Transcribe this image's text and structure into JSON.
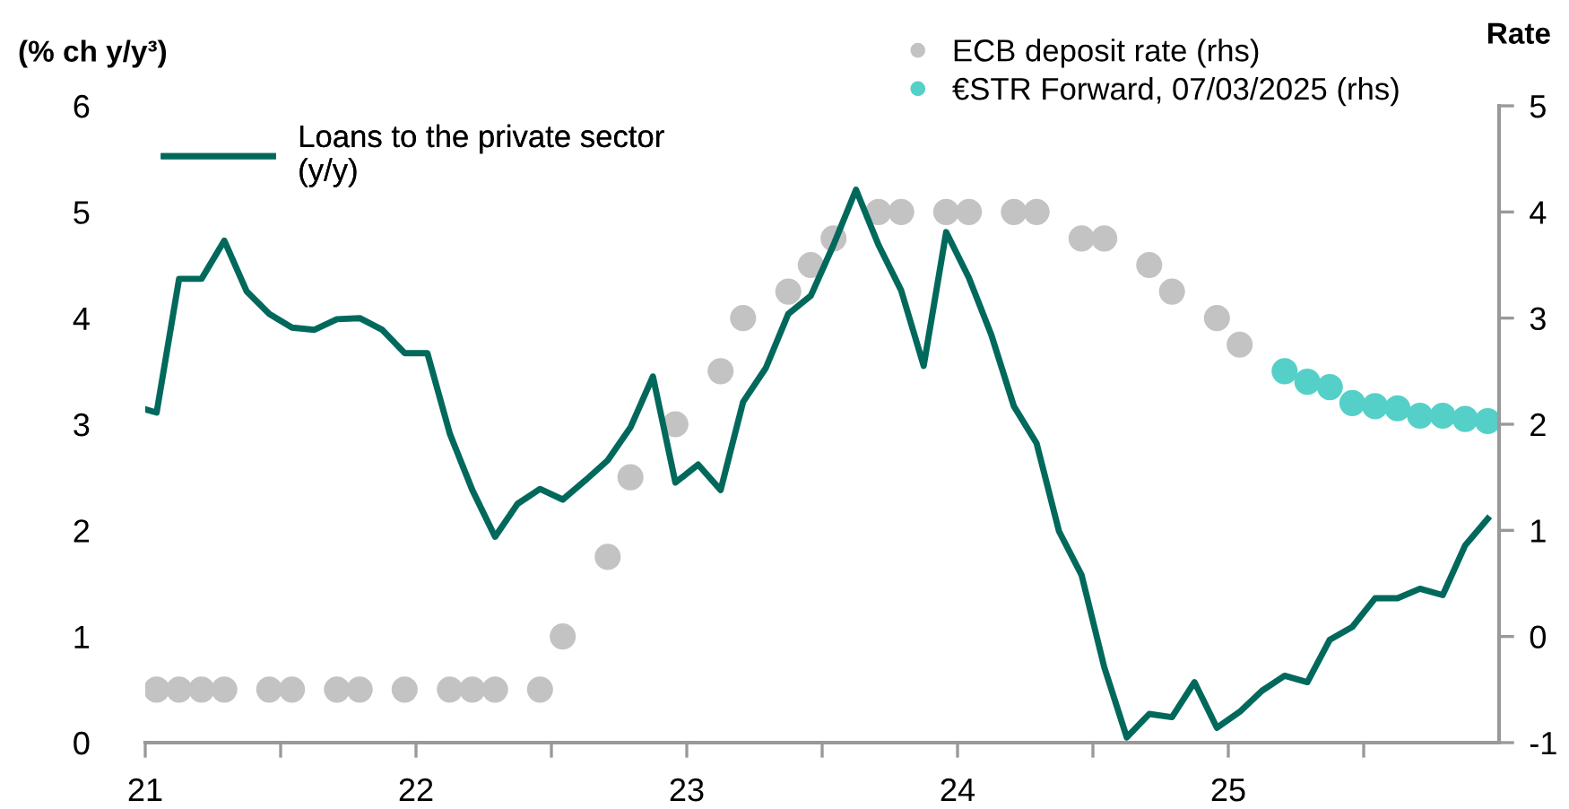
{
  "chart_data": {
    "type": "line",
    "ylabel": "(% ch y/y³)",
    "y2label": "Rate",
    "xlim": [
      21,
      26
    ],
    "ylim": [
      0,
      6
    ],
    "y2lim": [
      -1,
      5
    ],
    "xticks": [
      21,
      {
        "value": 21.5,
        "label": null
      },
      22,
      {
        "value": 22.5,
        "label": null
      },
      23,
      {
        "value": 23.5,
        "label": null
      },
      24,
      {
        "value": 24.5,
        "label": null
      },
      25,
      {
        "value": 25.5,
        "label": null
      }
    ],
    "yticks": [
      0,
      1,
      2,
      3,
      4,
      5,
      6
    ],
    "y2ticks": [
      -1,
      0,
      1,
      2,
      3,
      4,
      5
    ],
    "legend": "top",
    "grid": false,
    "series": [
      {
        "name": "Loans to the private sector (y/y)",
        "color": "#00695c",
        "x": [
          21.0,
          21.042,
          21.125,
          21.208,
          21.292,
          21.375,
          21.458,
          21.542,
          21.625,
          21.708,
          21.792,
          21.875,
          21.958,
          22.042,
          22.125,
          22.208,
          22.292,
          22.375,
          22.458,
          22.542,
          22.625,
          22.708,
          22.792,
          22.875,
          22.958,
          23.042,
          23.125,
          23.208,
          23.292,
          23.375,
          23.458,
          23.542,
          23.625,
          23.708,
          23.792,
          23.875,
          23.958,
          24.042,
          24.125,
          24.208,
          24.292,
          24.375,
          24.458,
          24.542,
          24.625,
          24.708,
          24.792,
          24.875,
          24.958,
          25.042,
          25.125,
          25.208,
          25.292,
          25.375,
          25.458,
          25.542,
          25.625,
          25.708,
          25.792,
          25.875,
          25.958
        ],
        "values": [
          3.14,
          3.11,
          4.37,
          4.37,
          4.73,
          4.25,
          4.04,
          3.91,
          3.89,
          3.99,
          4.0,
          3.89,
          3.67,
          3.67,
          2.91,
          2.38,
          1.94,
          2.25,
          2.39,
          2.29,
          2.47,
          2.66,
          2.97,
          3.45,
          2.45,
          2.62,
          2.38,
          3.21,
          3.53,
          4.04,
          4.21,
          4.69,
          5.21,
          4.69,
          4.26,
          3.55,
          4.81,
          4.38,
          3.84,
          3.17,
          2.82,
          1.99,
          1.58,
          0.71,
          0.05,
          0.27,
          0.24,
          0.57,
          0.14,
          0.29,
          0.49,
          0.63,
          0.57,
          0.97,
          1.09,
          1.36,
          1.36,
          1.45,
          1.39,
          1.86,
          2.11
        ]
      },
      {
        "name": "ECB deposit rate (rhs)",
        "type": "scatter",
        "axis": "y2",
        "color": "#c3c3c3",
        "x": [
          21.042,
          21.125,
          21.208,
          21.292,
          21.458,
          21.542,
          21.708,
          21.792,
          21.958,
          22.125,
          22.208,
          22.292,
          22.458,
          22.542,
          22.708,
          22.792,
          22.958,
          23.125,
          23.208,
          23.375,
          23.458,
          23.542,
          23.708,
          23.792,
          23.958,
          24.042,
          24.208,
          24.292,
          24.458,
          24.542,
          24.708,
          24.792,
          24.958,
          25.042
        ],
        "values": [
          -0.5,
          -0.5,
          -0.5,
          -0.5,
          -0.5,
          -0.5,
          -0.5,
          -0.5,
          -0.5,
          -0.5,
          -0.5,
          -0.5,
          -0.5,
          0,
          0.75,
          1.5,
          2.0,
          2.5,
          3.0,
          3.25,
          3.5,
          3.75,
          4,
          4,
          4,
          4,
          4,
          4,
          3.75,
          3.75,
          3.5,
          3.25,
          3.0,
          2.75
        ]
      },
      {
        "name": "€STR Forward, 07/03/2025 (rhs)",
        "type": "scatter",
        "axis": "y2",
        "color": "#55d0c8",
        "x": [
          25.208,
          25.292,
          25.375,
          25.458,
          25.542,
          25.625,
          25.708,
          25.792,
          25.875,
          25.958
        ],
        "values": [
          2.5,
          2.4,
          2.35,
          2.2,
          2.17,
          2.15,
          2.08,
          2.08,
          2.05,
          2.03
        ]
      }
    ]
  }
}
